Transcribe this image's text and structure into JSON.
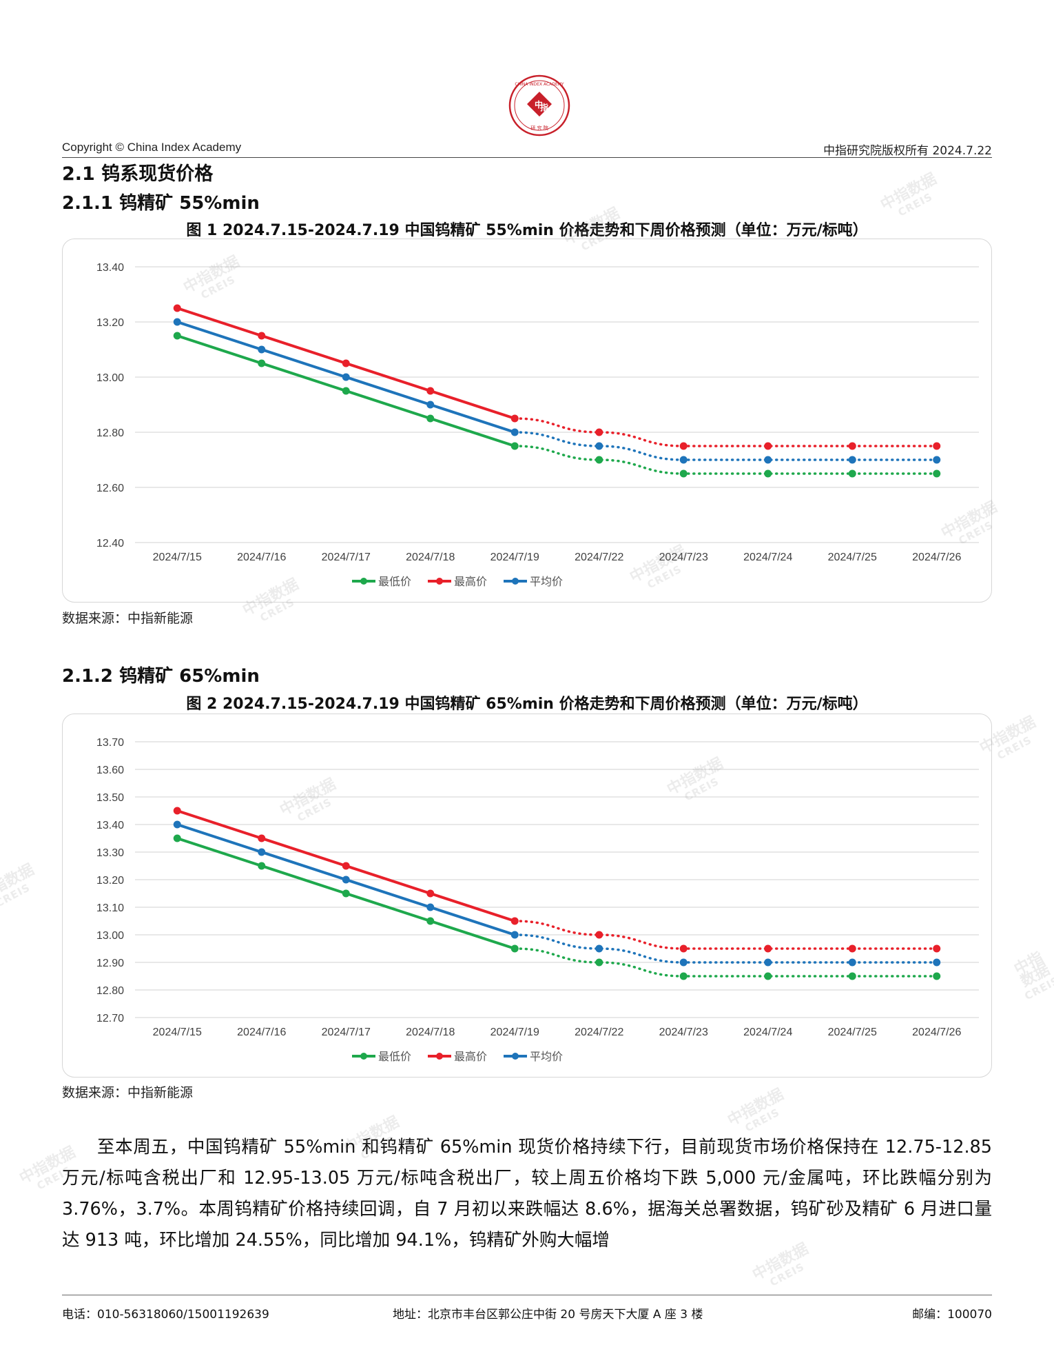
{
  "header": {
    "logo_text": "CHINA INDEX ACADEMY 中指 研究院",
    "copyright": "Copyright © China Index Academy",
    "rights": "中指研究院版权所有 2024.7.22"
  },
  "section": {
    "title": "2.1 钨系现货价格",
    "sub1": "2.1.1 钨精矿 55%min",
    "fig1_title": "图 1 2024.7.15-2024.7.19 中国钨精矿 55%min 价格走势和下周价格预测（单位：万元/标吨）",
    "source1": "数据来源：中指新能源",
    "sub2": "2.1.2 钨精矿 65%min",
    "fig2_title": "图 2 2024.7.15-2024.7.19 中国钨精矿 65%min 价格走势和下周价格预测（单位：万元/标吨）",
    "source2": "数据来源：中指新能源"
  },
  "chart_data": [
    {
      "type": "line",
      "title": "图 1 2024.7.15-2024.7.19 中国钨精矿 55%min 价格走势和下周价格预测（单位：万元/标吨）",
      "categories": [
        "2024/7/15",
        "2024/7/16",
        "2024/7/17",
        "2024/7/18",
        "2024/7/19",
        "2024/7/22",
        "2024/7/23",
        "2024/7/24",
        "2024/7/25",
        "2024/7/26"
      ],
      "ylim": [
        12.4,
        13.4
      ],
      "yticks": [
        "12.40",
        "12.60",
        "12.80",
        "13.00",
        "13.20",
        "13.40"
      ],
      "grid": true,
      "legend": "bottom",
      "forecast_from_index": 4,
      "series": [
        {
          "name": "最低价",
          "color": "#1ea84c",
          "values": [
            13.15,
            13.05,
            12.95,
            12.85,
            12.75,
            12.7,
            12.65,
            12.65,
            12.65,
            12.65
          ]
        },
        {
          "name": "最高价",
          "color": "#e8202a",
          "values": [
            13.25,
            13.15,
            13.05,
            12.95,
            12.85,
            12.8,
            12.75,
            12.75,
            12.75,
            12.75
          ]
        },
        {
          "name": "平均价",
          "color": "#1e74ba",
          "values": [
            13.2,
            13.1,
            13.0,
            12.9,
            12.8,
            12.75,
            12.7,
            12.7,
            12.7,
            12.7
          ]
        }
      ]
    },
    {
      "type": "line",
      "title": "图 2 2024.7.15-2024.7.19 中国钨精矿 65%min 价格走势和下周价格预测（单位：万元/标吨）",
      "categories": [
        "2024/7/15",
        "2024/7/16",
        "2024/7/17",
        "2024/7/18",
        "2024/7/19",
        "2024/7/22",
        "2024/7/23",
        "2024/7/24",
        "2024/7/25",
        "2024/7/26"
      ],
      "ylim": [
        12.7,
        13.7
      ],
      "yticks": [
        "12.70",
        "12.80",
        "12.90",
        "13.00",
        "13.10",
        "13.20",
        "13.30",
        "13.40",
        "13.50",
        "13.60",
        "13.70"
      ],
      "grid": true,
      "legend": "bottom",
      "forecast_from_index": 4,
      "series": [
        {
          "name": "最低价",
          "color": "#1ea84c",
          "values": [
            13.35,
            13.25,
            13.15,
            13.05,
            12.95,
            12.9,
            12.85,
            12.85,
            12.85,
            12.85
          ]
        },
        {
          "name": "最高价",
          "color": "#e8202a",
          "values": [
            13.45,
            13.35,
            13.25,
            13.15,
            13.05,
            13.0,
            12.95,
            12.95,
            12.95,
            12.95
          ]
        },
        {
          "name": "平均价",
          "color": "#1e74ba",
          "values": [
            13.4,
            13.3,
            13.2,
            13.1,
            13.0,
            12.95,
            12.9,
            12.9,
            12.9,
            12.9
          ]
        }
      ]
    }
  ],
  "body": {
    "paragraph": "至本周五，中国钨精矿 55%min 和钨精矿 65%min 现货价格持续下行，目前现货市场价格保持在 12.75-12.85 万元/标吨含税出厂和 12.95-13.05 万元/标吨含税出厂，较上周五价格均下跌 5,000 元/金属吨，环比跌幅分别为 3.76%，3.7%。本周钨精矿价格持续回调，自 7 月初以来跌幅达 8.6%，据海关总署数据，钨矿砂及精矿 6 月进口量达 913 吨，环比增加 24.55%，同比增加 94.1%，钨精矿外购大幅增"
  },
  "footer": {
    "phone": "电话：010-56318060/15001192639",
    "address": "地址：北京市丰台区郭公庄中街 20 号房天下大厦 A 座 3 楼",
    "postcode": "邮编：100070"
  },
  "watermark": {
    "line1": "中指数据",
    "line2": "CREIS"
  }
}
